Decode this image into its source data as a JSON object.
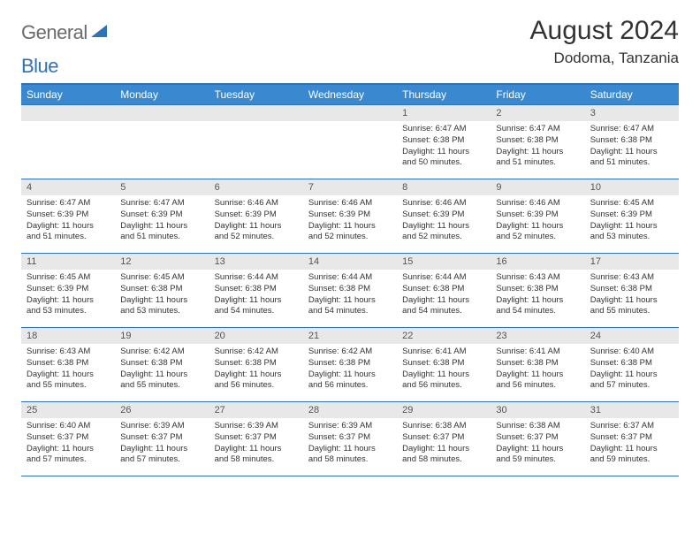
{
  "logo": {
    "text1": "General",
    "text2": "Blue",
    "color1": "#6b6b6b",
    "color2": "#2e72b8",
    "icon_color": "#2e72b8"
  },
  "header": {
    "month_title": "August 2024",
    "location": "Dodoma, Tanzania"
  },
  "style": {
    "header_bg": "#3a88cf",
    "header_text": "#ffffff",
    "border_color": "#2e72b8",
    "daynum_bg": "#e8e8e8",
    "page_bg": "#ffffff",
    "body_text": "#333333"
  },
  "day_names": [
    "Sunday",
    "Monday",
    "Tuesday",
    "Wednesday",
    "Thursday",
    "Friday",
    "Saturday"
  ],
  "leading_blanks": 4,
  "days": [
    {
      "n": 1,
      "sunrise": "6:47 AM",
      "sunset": "6:38 PM",
      "daylight": "11 hours and 50 minutes."
    },
    {
      "n": 2,
      "sunrise": "6:47 AM",
      "sunset": "6:38 PM",
      "daylight": "11 hours and 51 minutes."
    },
    {
      "n": 3,
      "sunrise": "6:47 AM",
      "sunset": "6:38 PM",
      "daylight": "11 hours and 51 minutes."
    },
    {
      "n": 4,
      "sunrise": "6:47 AM",
      "sunset": "6:39 PM",
      "daylight": "11 hours and 51 minutes."
    },
    {
      "n": 5,
      "sunrise": "6:47 AM",
      "sunset": "6:39 PM",
      "daylight": "11 hours and 51 minutes."
    },
    {
      "n": 6,
      "sunrise": "6:46 AM",
      "sunset": "6:39 PM",
      "daylight": "11 hours and 52 minutes."
    },
    {
      "n": 7,
      "sunrise": "6:46 AM",
      "sunset": "6:39 PM",
      "daylight": "11 hours and 52 minutes."
    },
    {
      "n": 8,
      "sunrise": "6:46 AM",
      "sunset": "6:39 PM",
      "daylight": "11 hours and 52 minutes."
    },
    {
      "n": 9,
      "sunrise": "6:46 AM",
      "sunset": "6:39 PM",
      "daylight": "11 hours and 52 minutes."
    },
    {
      "n": 10,
      "sunrise": "6:45 AM",
      "sunset": "6:39 PM",
      "daylight": "11 hours and 53 minutes."
    },
    {
      "n": 11,
      "sunrise": "6:45 AM",
      "sunset": "6:39 PM",
      "daylight": "11 hours and 53 minutes."
    },
    {
      "n": 12,
      "sunrise": "6:45 AM",
      "sunset": "6:38 PM",
      "daylight": "11 hours and 53 minutes."
    },
    {
      "n": 13,
      "sunrise": "6:44 AM",
      "sunset": "6:38 PM",
      "daylight": "11 hours and 54 minutes."
    },
    {
      "n": 14,
      "sunrise": "6:44 AM",
      "sunset": "6:38 PM",
      "daylight": "11 hours and 54 minutes."
    },
    {
      "n": 15,
      "sunrise": "6:44 AM",
      "sunset": "6:38 PM",
      "daylight": "11 hours and 54 minutes."
    },
    {
      "n": 16,
      "sunrise": "6:43 AM",
      "sunset": "6:38 PM",
      "daylight": "11 hours and 54 minutes."
    },
    {
      "n": 17,
      "sunrise": "6:43 AM",
      "sunset": "6:38 PM",
      "daylight": "11 hours and 55 minutes."
    },
    {
      "n": 18,
      "sunrise": "6:43 AM",
      "sunset": "6:38 PM",
      "daylight": "11 hours and 55 minutes."
    },
    {
      "n": 19,
      "sunrise": "6:42 AM",
      "sunset": "6:38 PM",
      "daylight": "11 hours and 55 minutes."
    },
    {
      "n": 20,
      "sunrise": "6:42 AM",
      "sunset": "6:38 PM",
      "daylight": "11 hours and 56 minutes."
    },
    {
      "n": 21,
      "sunrise": "6:42 AM",
      "sunset": "6:38 PM",
      "daylight": "11 hours and 56 minutes."
    },
    {
      "n": 22,
      "sunrise": "6:41 AM",
      "sunset": "6:38 PM",
      "daylight": "11 hours and 56 minutes."
    },
    {
      "n": 23,
      "sunrise": "6:41 AM",
      "sunset": "6:38 PM",
      "daylight": "11 hours and 56 minutes."
    },
    {
      "n": 24,
      "sunrise": "6:40 AM",
      "sunset": "6:38 PM",
      "daylight": "11 hours and 57 minutes."
    },
    {
      "n": 25,
      "sunrise": "6:40 AM",
      "sunset": "6:37 PM",
      "daylight": "11 hours and 57 minutes."
    },
    {
      "n": 26,
      "sunrise": "6:39 AM",
      "sunset": "6:37 PM",
      "daylight": "11 hours and 57 minutes."
    },
    {
      "n": 27,
      "sunrise": "6:39 AM",
      "sunset": "6:37 PM",
      "daylight": "11 hours and 58 minutes."
    },
    {
      "n": 28,
      "sunrise": "6:39 AM",
      "sunset": "6:37 PM",
      "daylight": "11 hours and 58 minutes."
    },
    {
      "n": 29,
      "sunrise": "6:38 AM",
      "sunset": "6:37 PM",
      "daylight": "11 hours and 58 minutes."
    },
    {
      "n": 30,
      "sunrise": "6:38 AM",
      "sunset": "6:37 PM",
      "daylight": "11 hours and 59 minutes."
    },
    {
      "n": 31,
      "sunrise": "6:37 AM",
      "sunset": "6:37 PM",
      "daylight": "11 hours and 59 minutes."
    }
  ],
  "labels": {
    "sunrise": "Sunrise:",
    "sunset": "Sunset:",
    "daylight": "Daylight:"
  }
}
